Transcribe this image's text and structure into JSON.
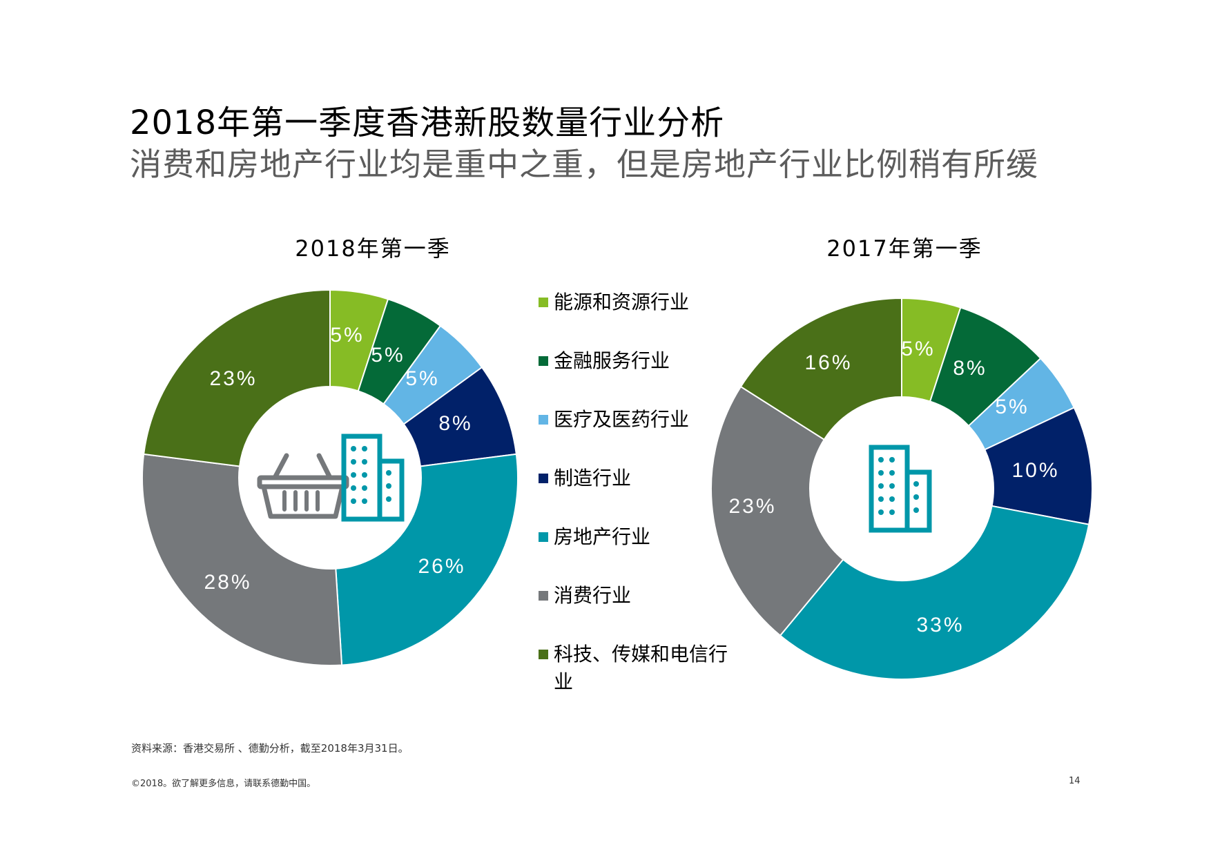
{
  "title": "2018年第一季度香港新股数量行业分析",
  "subtitle": "消费和房地产行业均是重中之重，但是房地产行业比例稍有所缓",
  "legend": [
    {
      "label": "能源和资源行业",
      "color": "#86bc25"
    },
    {
      "label": "金融服务行业",
      "color": "#046a38"
    },
    {
      "label": "医疗及医药行业",
      "color": "#62b5e5"
    },
    {
      "label": "制造行业",
      "color": "#012169"
    },
    {
      "label": "房地产行业",
      "color": "#0097a9"
    },
    {
      "label": "消费行业",
      "color": "#75787b"
    },
    {
      "label": "科技、传媒和电信行业",
      "color": "#4a7018"
    }
  ],
  "chart_data": [
    {
      "type": "pie",
      "variant": "donut",
      "title": "2018年第一季",
      "categories": [
        "能源和资源行业",
        "金融服务行业",
        "医疗及医药行业",
        "制造行业",
        "房地产行业",
        "消费行业",
        "科技、传媒和电信行业"
      ],
      "values": [
        5,
        5,
        5,
        8,
        26,
        28,
        23
      ],
      "labels": [
        "5%",
        "5%",
        "5%",
        "8%",
        "26%",
        "28%",
        "23%"
      ],
      "center_icons": [
        "shopping-basket-icon",
        "building-icon"
      ]
    },
    {
      "type": "pie",
      "variant": "donut",
      "title": "2017年第一季",
      "categories": [
        "能源和资源行业",
        "金融服务行业",
        "医疗及医药行业",
        "制造行业",
        "房地产行业",
        "消费行业",
        "科技、传媒和电信行业"
      ],
      "values": [
        5,
        8,
        5,
        10,
        33,
        23,
        16
      ],
      "labels": [
        "5%",
        "8%",
        "5%",
        "10%",
        "33%",
        "23%",
        "16%"
      ],
      "center_icons": [
        "building-icon"
      ]
    }
  ],
  "icon_colors": {
    "basket": "#75787b",
    "building": "#0097a9"
  },
  "footer": {
    "source": "资料来源：香港交易所 、德勤分析，截至2018年3月31日。",
    "copyright": "©2018。欲了解更多信息，请联系德勤中国。",
    "page_number": "14"
  }
}
